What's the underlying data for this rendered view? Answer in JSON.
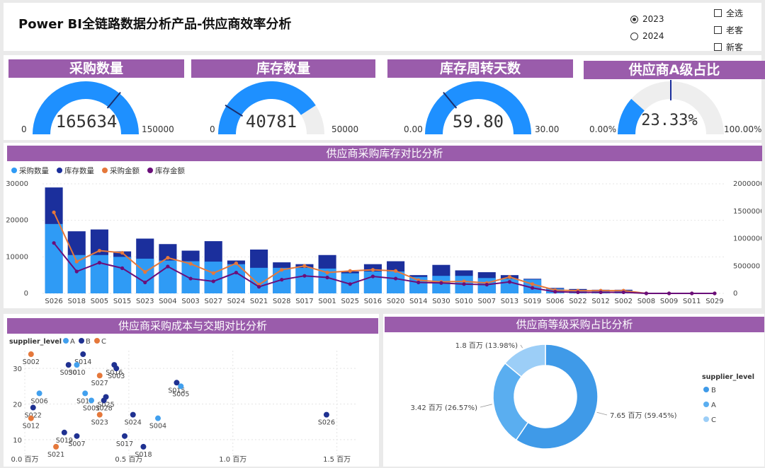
{
  "header": {
    "title": "Power BI全链路数据分析产品-供应商效率分析"
  },
  "year_filter": {
    "options": [
      {
        "label": "2023",
        "selected": true
      },
      {
        "label": "2024",
        "selected": false
      }
    ]
  },
  "customer_filter": {
    "options": [
      {
        "label": "全选"
      },
      {
        "label": "老客"
      },
      {
        "label": "新客"
      }
    ]
  },
  "kpis": [
    {
      "title": "采购数量",
      "value": "165634",
      "min": "0",
      "max": "150000",
      "fill_fraction": 1.0,
      "target_fraction": 0.72
    },
    {
      "title": "库存数量",
      "value": "40781",
      "min": "0",
      "max": "50000",
      "fill_fraction": 0.8156,
      "target_fraction": 0.18
    },
    {
      "title": "库存周转天数",
      "value": "59.80",
      "min": "0.00",
      "max": "30.00",
      "fill_fraction": 1.0,
      "target_fraction": 0.28
    },
    {
      "title": "供应商A级占比",
      "value": "23.33%",
      "min": "0.00%",
      "max": "100.00%",
      "fill_fraction": 0.2333,
      "target_fraction": 0.5
    }
  ],
  "combo": {
    "title": "供应商采购库存对比分析",
    "chart_data": {
      "type": "bar",
      "legend": [
        "采购数量",
        "库存数量",
        "采购金额",
        "库存金额"
      ],
      "colors": {
        "purchase_qty": "#2f9bf5",
        "stock_qty": "#1b2f9c",
        "purchase_amt": "#e5783b",
        "stock_amt": "#6a0f7a"
      },
      "categories": [
        "S026",
        "S018",
        "S005",
        "S015",
        "S023",
        "S004",
        "S003",
        "S027",
        "S024",
        "S021",
        "S028",
        "S017",
        "S001",
        "S025",
        "S016",
        "S020",
        "S014",
        "S030",
        "S010",
        "S007",
        "S013",
        "S019",
        "S006",
        "S022",
        "S012",
        "S002",
        "S008",
        "S009",
        "S011",
        "S029"
      ],
      "y_left": {
        "ticks": [
          "0",
          "10000",
          "20000",
          "30000"
        ],
        "range": [
          0,
          30000
        ]
      },
      "y_right": {
        "ticks": [
          "0",
          "500000",
          "1000000",
          "1500000",
          "2000000"
        ],
        "range": [
          0,
          2000000
        ]
      },
      "series": [
        {
          "name": "采购数量",
          "axis": "left",
          "values": [
            19000,
            10500,
            10500,
            10000,
            9500,
            9000,
            8800,
            8700,
            8000,
            7000,
            7000,
            7000,
            6800,
            5500,
            6000,
            6000,
            4500,
            4800,
            4800,
            4200,
            4000,
            3800,
            1300,
            900,
            800,
            800,
            0,
            0,
            0,
            0
          ]
        },
        {
          "name": "库存数量",
          "axis": "left",
          "values": [
            29000,
            17000,
            17500,
            11500,
            15000,
            13500,
            11700,
            14300,
            9000,
            12000,
            8500,
            8000,
            10500,
            6000,
            8000,
            8800,
            5000,
            7800,
            6300,
            5800,
            5000,
            4000,
            1500,
            1200,
            1000,
            1000,
            0,
            0,
            0,
            0
          ]
        },
        {
          "name": "采购金额",
          "axis": "right",
          "values": [
            1480000,
            580000,
            780000,
            740000,
            390000,
            650000,
            540000,
            370000,
            550000,
            160000,
            430000,
            500000,
            380000,
            410000,
            430000,
            410000,
            240000,
            210000,
            220000,
            190000,
            300000,
            170000,
            60000,
            50000,
            50000,
            50000,
            0,
            0,
            0,
            0
          ]
        },
        {
          "name": "库存金额",
          "axis": "right",
          "values": [
            920000,
            400000,
            560000,
            460000,
            200000,
            490000,
            270000,
            220000,
            380000,
            120000,
            250000,
            320000,
            290000,
            170000,
            310000,
            270000,
            200000,
            190000,
            170000,
            160000,
            210000,
            100000,
            30000,
            20000,
            20000,
            20000,
            0,
            0,
            0,
            0
          ]
        }
      ]
    }
  },
  "scatter": {
    "title": "供应商采购成本与交期对比分析",
    "legend_title": "supplier_level",
    "chart_data": {
      "type": "scatter",
      "legend": [
        "A",
        "B",
        "C"
      ],
      "colors": {
        "A": "#41a0ee",
        "B": "#1f3191",
        "C": "#e5783b"
      },
      "x_ticks": [
        "0.0 百万",
        "0.5 百万",
        "1.0 百万",
        "1.5 百万"
      ],
      "x_range": [
        0,
        1.6
      ],
      "y_ticks": [
        "10",
        "20",
        "30"
      ],
      "y_range": [
        6,
        35
      ],
      "points": [
        {
          "label": "S002",
          "x": 0.03,
          "y": 34,
          "level": "C"
        },
        {
          "label": "S030",
          "x": 0.21,
          "y": 31,
          "level": "B"
        },
        {
          "label": "S014",
          "x": 0.28,
          "y": 34,
          "level": "B"
        },
        {
          "label": "S010",
          "x": 0.25,
          "y": 31,
          "level": "A"
        },
        {
          "label": "S016",
          "x": 0.43,
          "y": 31,
          "level": "B"
        },
        {
          "label": "S027",
          "x": 0.36,
          "y": 28,
          "level": "C"
        },
        {
          "label": "S003",
          "x": 0.44,
          "y": 30,
          "level": "B"
        },
        {
          "label": "S006",
          "x": 0.07,
          "y": 23,
          "level": "A"
        },
        {
          "label": "S013",
          "x": 0.29,
          "y": 23,
          "level": "A"
        },
        {
          "label": "S025",
          "x": 0.39,
          "y": 22,
          "level": "B"
        },
        {
          "label": "S028",
          "x": 0.38,
          "y": 21,
          "level": "B"
        },
        {
          "label": "S001",
          "x": 0.32,
          "y": 21,
          "level": "A"
        },
        {
          "label": "S015",
          "x": 0.73,
          "y": 26,
          "level": "B"
        },
        {
          "label": "S005",
          "x": 0.75,
          "y": 25,
          "level": "A"
        },
        {
          "label": "S022",
          "x": 0.04,
          "y": 19,
          "level": "B"
        },
        {
          "label": "S012",
          "x": 0.03,
          "y": 16,
          "level": "C"
        },
        {
          "label": "S023",
          "x": 0.36,
          "y": 17,
          "level": "C"
        },
        {
          "label": "S024",
          "x": 0.52,
          "y": 17,
          "level": "B"
        },
        {
          "label": "S004",
          "x": 0.64,
          "y": 16,
          "level": "A"
        },
        {
          "label": "S019",
          "x": 0.19,
          "y": 12,
          "level": "B"
        },
        {
          "label": "S021",
          "x": 0.15,
          "y": 8,
          "level": "C"
        },
        {
          "label": "S007",
          "x": 0.25,
          "y": 11,
          "level": "B"
        },
        {
          "label": "S017",
          "x": 0.48,
          "y": 11,
          "level": "B"
        },
        {
          "label": "S018",
          "x": 0.57,
          "y": 8,
          "level": "B"
        },
        {
          "label": "S026",
          "x": 1.45,
          "y": 17,
          "level": "B"
        }
      ]
    }
  },
  "donut": {
    "title": "供应商等级采购占比分析",
    "legend_title": "supplier_level",
    "chart_data": {
      "type": "pie",
      "slices": [
        {
          "label": "B",
          "value": 7.65,
          "percent": 59.45,
          "text": "7.65 百万 (59.45%)",
          "color": "#3f9ae8"
        },
        {
          "label": "A",
          "value": 3.42,
          "percent": 26.57,
          "text": "3.42 百万 (26.57%)",
          "color": "#5aaef0"
        },
        {
          "label": "C",
          "value": 1.8,
          "percent": 13.98,
          "text": "1.8 百万 (13.98%)",
          "color": "#9ccef7"
        }
      ]
    }
  }
}
